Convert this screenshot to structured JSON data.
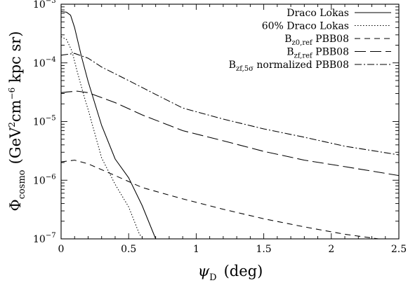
{
  "chart_data": {
    "type": "line",
    "xlabel": {
      "symbol": "ψ",
      "subscript": "D",
      "unit": "(deg)"
    },
    "ylabel": {
      "symbol": "Φ",
      "subscript": "cosmo",
      "unit_pre": "(GeV",
      "unit_sup1": "2",
      "unit_mid": "cm",
      "unit_sup2": "−6",
      "unit_post": " kpc sr)"
    },
    "xlim": [
      0,
      2.5
    ],
    "ylim": [
      1e-07,
      0.001
    ],
    "yscale": "log",
    "x_ticks": [
      {
        "v": 0,
        "label": "0"
      },
      {
        "v": 0.5,
        "label": "0.5"
      },
      {
        "v": 1,
        "label": "1"
      },
      {
        "v": 1.5,
        "label": "1.5"
      },
      {
        "v": 2,
        "label": "2"
      },
      {
        "v": 2.5,
        "label": "2.5"
      }
    ],
    "y_ticks": [
      {
        "exp": -7,
        "base": "10",
        "sup": "−7"
      },
      {
        "exp": -6,
        "base": "10",
        "sup": "−6"
      },
      {
        "exp": -5,
        "base": "10",
        "sup": "−5"
      },
      {
        "exp": -4,
        "base": "10",
        "sup": "−4"
      },
      {
        "exp": -3,
        "base": "10",
        "sup": "−3"
      }
    ],
    "legend_position": "top-right",
    "series": [
      {
        "name": "Draco Lokas",
        "label_text": "Draco Lokas",
        "label_sub": "",
        "label_after": "",
        "dash": "",
        "points": [
          [
            0,
            0.00075
          ],
          [
            0.04,
            0.00073
          ],
          [
            0.07,
            0.00065
          ],
          [
            0.1,
            0.0004
          ],
          [
            0.15,
            0.00013
          ],
          [
            0.2,
            4.8e-05
          ],
          [
            0.3,
            8.6e-06
          ],
          [
            0.4,
            2.3e-06
          ],
          [
            0.5,
            1.1e-06
          ],
          [
            0.6,
            3.7e-07
          ],
          [
            0.7,
            1e-07
          ]
        ]
      },
      {
        "name": "60% Draco Lokas",
        "label_text": "60% Draco Lokas",
        "label_sub": "",
        "label_after": "",
        "dash": "1.5,2.5",
        "points": [
          [
            0,
            0.00028
          ],
          [
            0.04,
            0.00025
          ],
          [
            0.08,
            0.00016
          ],
          [
            0.12,
            7e-05
          ],
          [
            0.17,
            2.7e-05
          ],
          [
            0.2,
            1.6e-05
          ],
          [
            0.3,
            2.4e-06
          ],
          [
            0.4,
            8.5e-07
          ],
          [
            0.5,
            3.5e-07
          ],
          [
            0.58,
            1.2e-07
          ],
          [
            0.61,
            1e-07
          ]
        ]
      },
      {
        "name": "B z0,ref PBB08",
        "label_text": "B",
        "label_sub": "z0,ref",
        "label_after": " PBB08",
        "dash": "8,6",
        "points": [
          [
            0,
            2.05e-06
          ],
          [
            0.1,
            2.2e-06
          ],
          [
            0.2,
            1.9e-06
          ],
          [
            0.4,
            1.2e-06
          ],
          [
            0.6,
            7.5e-07
          ],
          [
            0.9,
            4.8e-07
          ],
          [
            1.2,
            3.2e-07
          ],
          [
            1.5,
            2.2e-07
          ],
          [
            1.8,
            1.6e-07
          ],
          [
            2.1,
            1.2e-07
          ],
          [
            2.35,
            1e-07
          ]
        ]
      },
      {
        "name": "B zf,ref PBB08",
        "label_text": "B",
        "label_sub": "zf,ref",
        "label_after": " PBB08",
        "dash": "16,6",
        "points": [
          [
            0,
            3.1e-05
          ],
          [
            0.05,
            3.2e-05
          ],
          [
            0.12,
            3.3e-05
          ],
          [
            0.2,
            3.1e-05
          ],
          [
            0.4,
            2.1e-05
          ],
          [
            0.6,
            1.3e-05
          ],
          [
            0.9,
            7e-06
          ],
          [
            1.2,
            4.7e-06
          ],
          [
            1.5,
            3.1e-06
          ],
          [
            1.8,
            2.2e-06
          ],
          [
            2.1,
            1.7e-06
          ],
          [
            2.5,
            1.2e-06
          ]
        ]
      },
      {
        "name": "B zf,5σ normalized PBB08",
        "label_text": "B",
        "label_sub": "zf,5σ",
        "label_after": " normalized PBB08",
        "dash": "10,3,2,3",
        "points": [
          [
            0,
            0.000135
          ],
          [
            0.05,
            0.00014
          ],
          [
            0.1,
            0.000145
          ],
          [
            0.2,
            0.00012
          ],
          [
            0.3,
            8.5e-05
          ],
          [
            0.5,
            5e-05
          ],
          [
            0.7,
            2.9e-05
          ],
          [
            0.9,
            1.7e-05
          ],
          [
            1.2,
            1.1e-05
          ],
          [
            1.5,
            7.5e-06
          ],
          [
            1.8,
            5.4e-06
          ],
          [
            2.1,
            3.8e-06
          ],
          [
            2.5,
            2.7e-06
          ]
        ]
      }
    ]
  }
}
